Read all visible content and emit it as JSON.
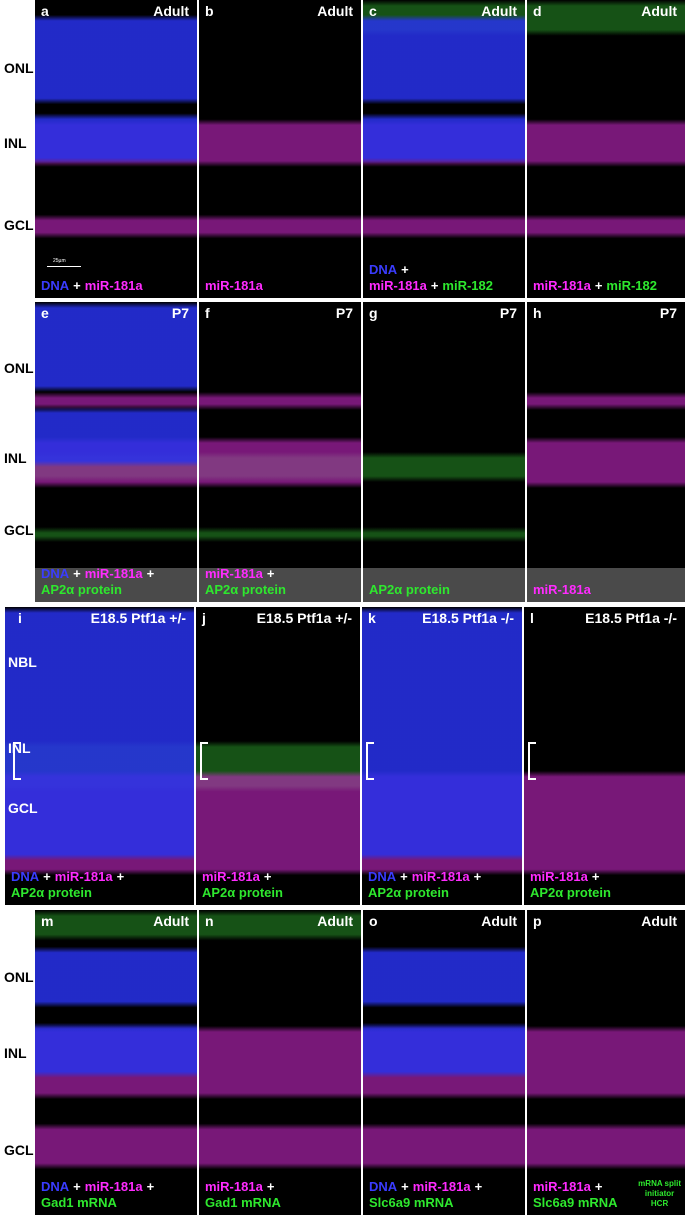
{
  "rows": [
    {
      "labels": [
        "ONL",
        "INL",
        "GCL"
      ],
      "panels": [
        {
          "letter": "a",
          "stage": "Adult",
          "scale_bar": "25µm",
          "caption": [
            [
              {
                "text": "DNA",
                "color": "blue"
              },
              {
                "text": "+",
                "color": "white"
              },
              {
                "text": "miR-181a",
                "color": "magenta"
              }
            ]
          ]
        },
        {
          "letter": "b",
          "stage": "Adult",
          "caption": [
            [
              {
                "text": "miR-181a",
                "color": "magenta"
              }
            ]
          ]
        },
        {
          "letter": "c",
          "stage": "Adult",
          "caption": [
            [
              {
                "text": "DNA",
                "color": "blue"
              },
              {
                "text": "+",
                "color": "white"
              }
            ],
            [
              {
                "text": "miR-181a",
                "color": "magenta"
              },
              {
                "text": "+",
                "color": "white"
              },
              {
                "text": "miR-182",
                "color": "green"
              }
            ]
          ]
        },
        {
          "letter": "d",
          "stage": "Adult",
          "caption": [
            [
              {
                "text": "miR-181a",
                "color": "magenta"
              },
              {
                "text": "+",
                "color": "white"
              },
              {
                "text": "miR-182",
                "color": "green"
              }
            ]
          ]
        }
      ]
    },
    {
      "labels": [
        "ONL",
        "INL",
        "GCL"
      ],
      "panels": [
        {
          "letter": "e",
          "stage": "P7",
          "caption": [
            [
              {
                "text": "DNA",
                "color": "blue"
              },
              {
                "text": "+",
                "color": "white"
              },
              {
                "text": "miR-181a",
                "color": "magenta"
              },
              {
                "text": "+",
                "color": "white"
              }
            ],
            [
              {
                "text": "AP2α protein",
                "color": "green"
              }
            ]
          ]
        },
        {
          "letter": "f",
          "stage": "P7",
          "caption": [
            [
              {
                "text": "miR-181a",
                "color": "magenta"
              },
              {
                "text": "+",
                "color": "white"
              }
            ],
            [
              {
                "text": "AP2α protein",
                "color": "green"
              }
            ]
          ]
        },
        {
          "letter": "g",
          "stage": "P7",
          "caption": [
            [
              {
                "text": "AP2α protein",
                "color": "green"
              }
            ]
          ]
        },
        {
          "letter": "h",
          "stage": "P7",
          "caption": [
            [
              {
                "text": "miR-181a",
                "color": "magenta"
              }
            ]
          ]
        }
      ]
    },
    {
      "labels": [
        "NBL",
        "INL",
        "GCL"
      ],
      "panels": [
        {
          "letter": "i",
          "stage": "E18.5 Ptf1a +/-",
          "caption": [
            [
              {
                "text": "DNA",
                "color": "blue"
              },
              {
                "text": "+",
                "color": "white"
              },
              {
                "text": "miR-181a",
                "color": "magenta"
              },
              {
                "text": "+",
                "color": "white"
              }
            ],
            [
              {
                "text": "AP2α protein",
                "color": "green"
              }
            ]
          ]
        },
        {
          "letter": "j",
          "stage": "E18.5 Ptf1a +/-",
          "caption": [
            [
              {
                "text": "miR-181a",
                "color": "magenta"
              },
              {
                "text": "+",
                "color": "white"
              }
            ],
            [
              {
                "text": "AP2α protein",
                "color": "green"
              }
            ]
          ]
        },
        {
          "letter": "k",
          "stage": "E18.5 Ptf1a -/-",
          "caption": [
            [
              {
                "text": "DNA",
                "color": "blue"
              },
              {
                "text": "+",
                "color": "white"
              },
              {
                "text": "miR-181a",
                "color": "magenta"
              },
              {
                "text": "+",
                "color": "white"
              }
            ],
            [
              {
                "text": "AP2α protein",
                "color": "green"
              }
            ]
          ]
        },
        {
          "letter": "l",
          "stage": "E18.5 Ptf1a -/-",
          "caption": [
            [
              {
                "text": "miR-181a",
                "color": "magenta"
              },
              {
                "text": "+",
                "color": "white"
              }
            ],
            [
              {
                "text": "AP2α protein",
                "color": "green"
              }
            ]
          ]
        }
      ]
    },
    {
      "labels": [
        "ONL",
        "INL",
        "GCL"
      ],
      "panels": [
        {
          "letter": "m",
          "stage": "Adult",
          "caption": [
            [
              {
                "text": "DNA",
                "color": "blue"
              },
              {
                "text": "+",
                "color": "white"
              },
              {
                "text": "miR-181a",
                "color": "magenta"
              },
              {
                "text": "+",
                "color": "white"
              }
            ],
            [
              {
                "text": "Gad1 mRNA",
                "color": "green"
              }
            ]
          ]
        },
        {
          "letter": "n",
          "stage": "Adult",
          "caption": [
            [
              {
                "text": "miR-181a",
                "color": "magenta"
              },
              {
                "text": "+",
                "color": "white"
              }
            ],
            [
              {
                "text": "Gad1 mRNA",
                "color": "green"
              }
            ]
          ]
        },
        {
          "letter": "o",
          "stage": "Adult",
          "caption": [
            [
              {
                "text": "DNA",
                "color": "blue"
              },
              {
                "text": "+",
                "color": "white"
              },
              {
                "text": "miR-181a",
                "color": "magenta"
              },
              {
                "text": "+",
                "color": "white"
              }
            ],
            [
              {
                "text": "Slc6a9 mRNA",
                "color": "green"
              }
            ]
          ]
        },
        {
          "letter": "p",
          "stage": "Adult",
          "note": [
            "mRNA split",
            "initiator",
            "HCR"
          ],
          "caption": [
            [
              {
                "text": "miR-181a",
                "color": "magenta"
              },
              {
                "text": "+",
                "color": "white"
              }
            ],
            [
              {
                "text": "Slc6a9 mRNA",
                "color": "green"
              }
            ]
          ]
        }
      ]
    }
  ]
}
